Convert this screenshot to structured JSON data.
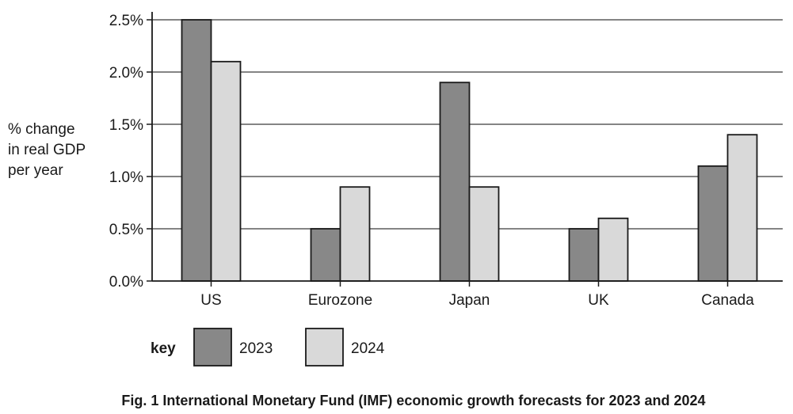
{
  "caption": "Fig. 1 International Monetary Fund (IMF) economic growth forecasts for 2023 and 2024",
  "chart_data": {
    "type": "bar",
    "title": "",
    "ylabel_lines": [
      "% change",
      "in real GDP",
      "per year"
    ],
    "xlabel": "",
    "categories": [
      "US",
      "Eurozone",
      "Japan",
      "UK",
      "Canada"
    ],
    "series": [
      {
        "name": "2023",
        "values": [
          2.5,
          0.5,
          1.9,
          0.5,
          1.1
        ],
        "color": "#888888"
      },
      {
        "name": "2024",
        "values": [
          2.1,
          0.9,
          0.9,
          0.6,
          1.4
        ],
        "color": "#d9d9d9"
      }
    ],
    "ylim": [
      0,
      2.5
    ],
    "yticks": [
      0,
      0.5,
      1.0,
      1.5,
      2.0,
      2.5
    ],
    "ytick_labels": [
      "0.0%",
      "0.5%",
      "1.0%",
      "1.5%",
      "2.0%",
      "2.5%"
    ],
    "grid": "horizontal",
    "legend": {
      "title": "key",
      "position": "bottom-left"
    }
  }
}
